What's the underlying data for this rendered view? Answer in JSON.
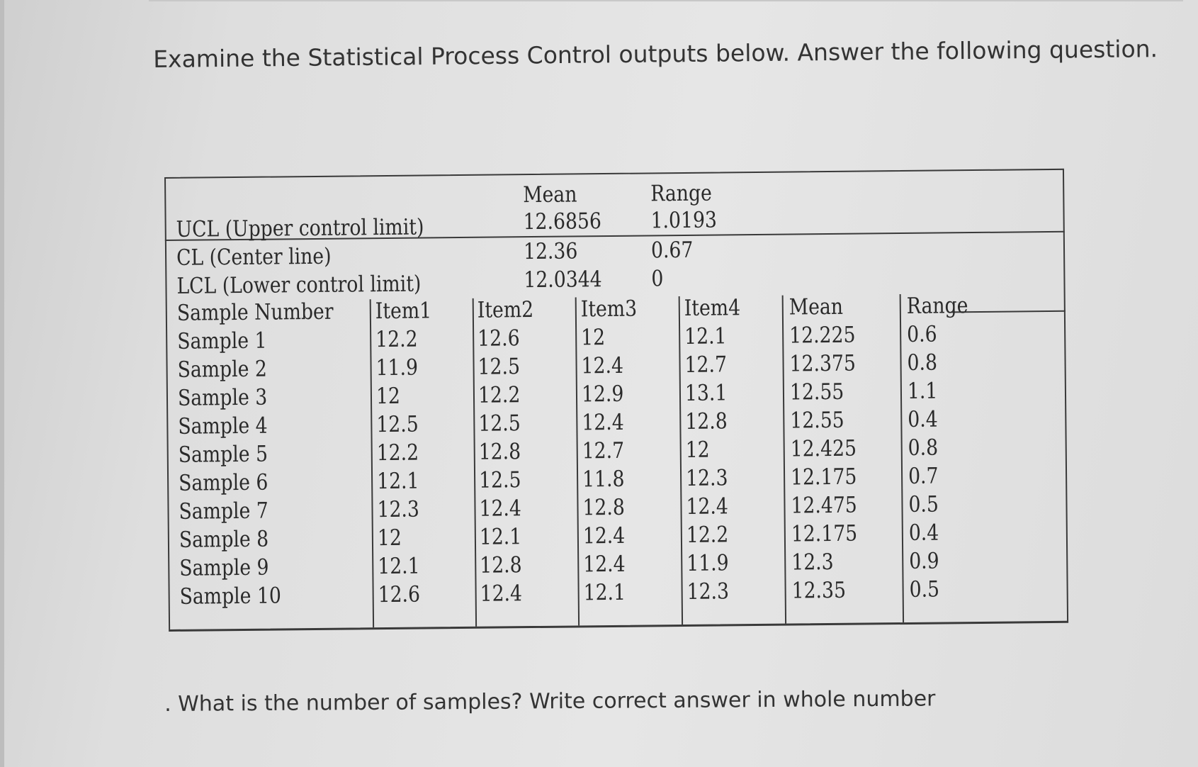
{
  "prompt": "Examine the Statistical Process Control outputs below. Answer the following question.",
  "control_limits": {
    "header_mean": "Mean",
    "header_range": "Range",
    "rows": [
      {
        "label": "UCL (Upper control limit)",
        "mean": "12.6856",
        "range": "1.0193"
      },
      {
        "label": "CL (Center line)",
        "mean": "12.36",
        "range": "0.67"
      },
      {
        "label": "LCL (Lower control limit)",
        "mean": "12.0344",
        "range": "0"
      }
    ]
  },
  "samples": {
    "headers": [
      "Sample Number",
      "Item1",
      "Item2",
      "Item3",
      "Item4",
      "Mean",
      "Range"
    ],
    "rows": [
      [
        "Sample 1",
        "12.2",
        "12.6",
        "12",
        "12.1",
        "12.225",
        "0.6"
      ],
      [
        "Sample 2",
        "11.9",
        "12.5",
        "12.4",
        "12.7",
        "12.375",
        "0.8"
      ],
      [
        "Sample 3",
        "12",
        "12.2",
        "12.9",
        "13.1",
        "12.55",
        "1.1"
      ],
      [
        "Sample 4",
        "12.5",
        "12.5",
        "12.4",
        "12.8",
        "12.55",
        "0.4"
      ],
      [
        "Sample 5",
        "12.2",
        "12.8",
        "12.7",
        "12",
        "12.425",
        "0.8"
      ],
      [
        "Sample 6",
        "12.1",
        "12.5",
        "11.8",
        "12.3",
        "12.175",
        "0.7"
      ],
      [
        "Sample 7",
        "12.3",
        "12.4",
        "12.8",
        "12.4",
        "12.475",
        "0.5"
      ],
      [
        "Sample 8",
        "12",
        "12.1",
        "12.4",
        "12.2",
        "12.175",
        "0.4"
      ],
      [
        "Sample 9",
        "12.1",
        "12.8",
        "12.4",
        "11.9",
        "12.3",
        "0.9"
      ],
      [
        "Sample 10",
        "12.6",
        "12.4",
        "12.1",
        "12.3",
        "12.35",
        "0.5"
      ]
    ]
  },
  "question": ". What is the number of samples? Write correct answer in whole number"
}
